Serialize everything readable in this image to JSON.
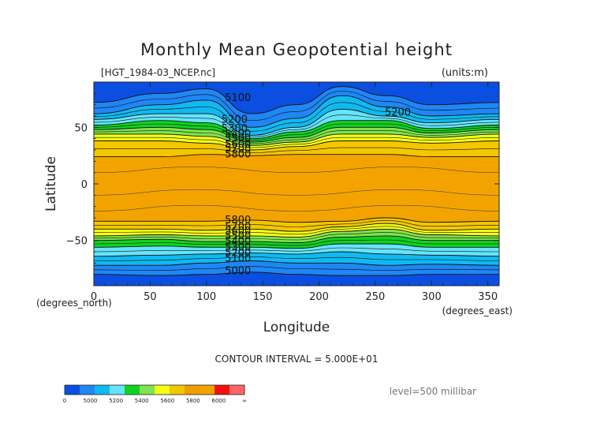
{
  "chart_data": {
    "type": "heatmap",
    "title": "Monthly Mean Geopotential height",
    "file_label": "[HGT_1984-03_NCEP.nc]",
    "units_label": "(units:m)",
    "xlabel": "Longitude",
    "ylabel": "Latitude",
    "x_unit_label": "(degrees_east)",
    "y_unit_label": "(degrees_north)",
    "xlim": [
      0,
      360
    ],
    "ylim": [
      -90,
      90
    ],
    "x_ticks": [
      "0",
      "50",
      "100",
      "150",
      "200",
      "250",
      "300",
      "350"
    ],
    "x_tick_values": [
      0,
      50,
      100,
      150,
      200,
      250,
      300,
      350
    ],
    "y_ticks": [
      "50",
      "0",
      "−50"
    ],
    "y_tick_values": [
      50,
      0,
      -50
    ],
    "contour_interval_label": "CONTOUR INTERVAL = 5.000E+01",
    "level_label": "level=500 millibar",
    "colorbar": {
      "colors": [
        "#0a4fe0",
        "#1f86f5",
        "#10b9f0",
        "#66e4fb",
        "#10d320",
        "#80e34f",
        "#f5ff14",
        "#f3c700",
        "#f09d00",
        "#f3a300",
        "#f51010",
        "#f66"
      ],
      "tick_labels": [
        "0",
        "5000",
        "5200",
        "5400",
        "5600",
        "5800",
        "6000",
        "∞"
      ],
      "band_colors": {
        "below_5000": "#0a4fe0",
        "5000_5100": "#1f86f5",
        "5100_5200": "#10b9f0",
        "5200_5300": "#66e4fb",
        "5300_5400": "#10d320",
        "5400_5500": "#80e34f",
        "5500_5600": "#f5ff14",
        "5600_5700": "#f3c700",
        "5700_5800": "#f3c700",
        "above_5800": "#f3a300"
      }
    },
    "contour_labels": [
      {
        "text": "5100",
        "lon": 128,
        "lat": 76
      },
      {
        "text": "5200",
        "lon": 125,
        "lat": 57
      },
      {
        "text": "5300",
        "lon": 125,
        "lat": 49
      },
      {
        "text": "5400",
        "lon": 128,
        "lat": 44
      },
      {
        "text": "5500",
        "lon": 128,
        "lat": 40
      },
      {
        "text": "5600",
        "lon": 128,
        "lat": 35
      },
      {
        "text": "5700",
        "lon": 128,
        "lat": 31
      },
      {
        "text": "5800",
        "lon": 128,
        "lat": 26
      },
      {
        "text": "5200",
        "lon": 270,
        "lat": 63
      },
      {
        "text": "5800",
        "lon": 128,
        "lat": -32
      },
      {
        "text": "5700",
        "lon": 128,
        "lat": -38
      },
      {
        "text": "5600",
        "lon": 128,
        "lat": -42
      },
      {
        "text": "5500",
        "lon": 128,
        "lat": -46
      },
      {
        "text": "5400",
        "lon": 128,
        "lat": -51
      },
      {
        "text": "5300",
        "lon": 128,
        "lat": -56
      },
      {
        "text": "5200",
        "lon": 128,
        "lat": -61
      },
      {
        "text": "5100",
        "lon": 128,
        "lat": -66
      },
      {
        "text": "5000",
        "lon": 128,
        "lat": -77
      }
    ],
    "band_boundaries": {
      "note_sequence": [
        "below_5000",
        "5000_5100",
        "5100_5200",
        "5200_5300",
        "5300_5400",
        "5400_5500",
        "5500_5600",
        "5600_5700",
        "above_5800"
      ],
      "north": [
        {
          "lon": 0,
          "lats": [
            90,
            72,
            62,
            57,
            52,
            48,
            44,
            38,
            24
          ]
        },
        {
          "lon": 60,
          "lats": [
            90,
            80,
            70,
            62,
            56,
            50,
            44,
            38,
            24
          ]
        },
        {
          "lon": 100,
          "lats": [
            90,
            84,
            74,
            62,
            54,
            48,
            42,
            36,
            26
          ]
        },
        {
          "lon": 140,
          "lats": [
            90,
            62,
            50,
            43,
            40,
            37,
            34,
            30,
            25
          ]
        },
        {
          "lon": 180,
          "lats": [
            90,
            70,
            58,
            50,
            46,
            41,
            37,
            33,
            26
          ]
        },
        {
          "lon": 220,
          "lats": [
            90,
            86,
            78,
            66,
            56,
            50,
            44,
            38,
            26
          ]
        },
        {
          "lon": 260,
          "lats": [
            90,
            78,
            68,
            60,
            56,
            50,
            44,
            38,
            26
          ]
        },
        {
          "lon": 300,
          "lats": [
            90,
            70,
            60,
            54,
            49,
            45,
            41,
            36,
            24
          ]
        },
        {
          "lon": 360,
          "lats": [
            90,
            72,
            62,
            57,
            52,
            48,
            44,
            38,
            24
          ]
        }
      ],
      "south": [
        {
          "lon": 0,
          "lats": [
            -90,
            -80,
            -72,
            -64,
            -56,
            -50,
            -46,
            -40,
            -33
          ]
        },
        {
          "lon": 60,
          "lats": [
            -90,
            -81,
            -72,
            -63,
            -55,
            -49,
            -45,
            -40,
            -33
          ]
        },
        {
          "lon": 100,
          "lats": [
            -90,
            -80,
            -70,
            -62,
            -56,
            -51,
            -46,
            -41,
            -33
          ]
        },
        {
          "lon": 140,
          "lats": [
            -90,
            -78,
            -68,
            -61,
            -56,
            -51,
            -46,
            -40,
            -32
          ]
        },
        {
          "lon": 180,
          "lats": [
            -90,
            -80,
            -70,
            -62,
            -57,
            -52,
            -47,
            -42,
            -34
          ]
        },
        {
          "lon": 220,
          "lats": [
            -90,
            -81,
            -70,
            -60,
            -53,
            -47,
            -42,
            -38,
            -33
          ]
        },
        {
          "lon": 260,
          "lats": [
            -90,
            -81,
            -72,
            -62,
            -53,
            -46,
            -40,
            -35,
            -30
          ]
        },
        {
          "lon": 300,
          "lats": [
            -90,
            -80,
            -71,
            -63,
            -56,
            -50,
            -45,
            -41,
            -34
          ]
        },
        {
          "lon": 360,
          "lats": [
            -90,
            -80,
            -72,
            -64,
            -56,
            -50,
            -46,
            -40,
            -33
          ]
        }
      ]
    }
  }
}
